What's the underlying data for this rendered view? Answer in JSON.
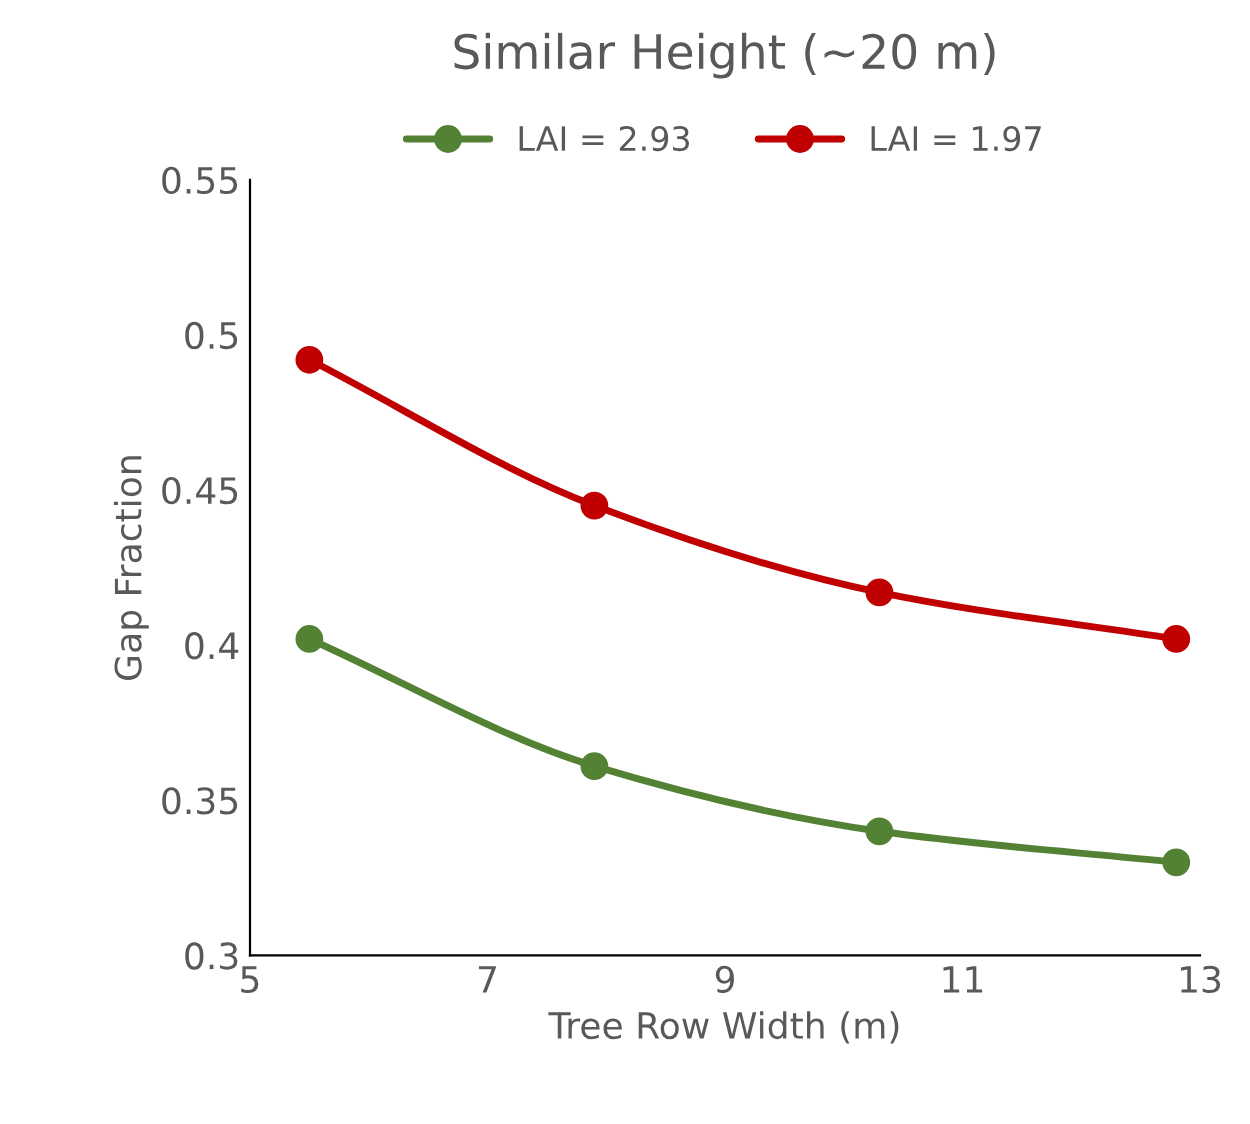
{
  "chart_data": {
    "type": "line",
    "title": "Similar Height (~20 m)",
    "xlabel": "Tree Row Width (m)",
    "ylabel": "Gap Fraction",
    "x": [
      5.5,
      7.9,
      10.3,
      12.8
    ],
    "series": [
      {
        "name": "LAI = 2.93",
        "color": "#548235",
        "values": [
          0.402,
          0.361,
          0.34,
          0.33
        ]
      },
      {
        "name": "LAI = 1.97",
        "color": "#c00000",
        "values": [
          0.492,
          0.445,
          0.417,
          0.402
        ]
      }
    ],
    "xlim": [
      5,
      13
    ],
    "xticks": [
      5,
      7,
      9,
      11,
      13
    ],
    "ylim": [
      0.3,
      0.55
    ],
    "yticks": [
      0.3,
      0.35,
      0.4,
      0.45,
      0.5,
      0.55
    ],
    "grid": false,
    "legend": "top",
    "marker": "circle",
    "line_style": "solid"
  }
}
